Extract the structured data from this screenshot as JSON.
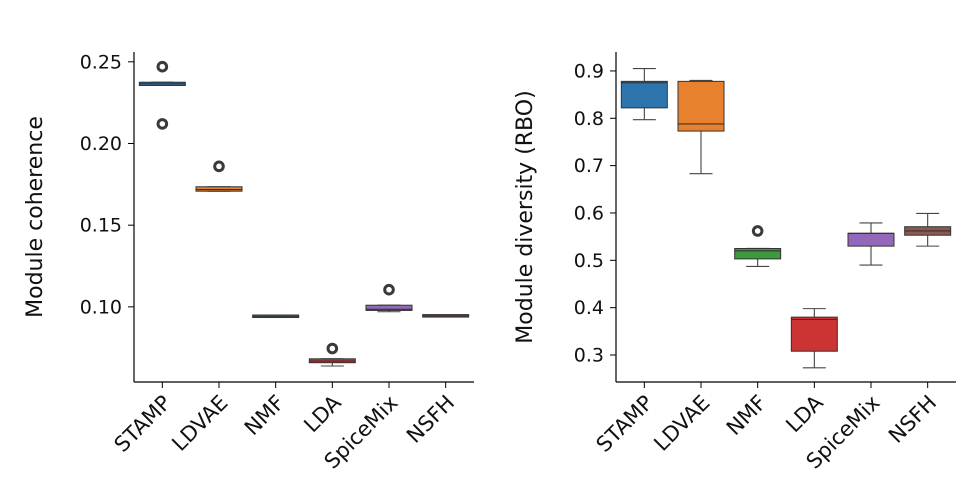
{
  "chart_data": [
    {
      "type": "box",
      "title": "",
      "xlabel": "",
      "ylabel": "Module coherence",
      "ylim": [
        0.054,
        0.256
      ],
      "yticks": [
        0.1,
        0.15,
        0.2,
        0.25
      ],
      "ytick_labels": [
        "0.10",
        "0.15",
        "0.20",
        "0.25"
      ],
      "categories": [
        "STAMP",
        "LDVAE",
        "NMF",
        "LDA",
        "SpiceMix",
        "NSFH"
      ],
      "colors": [
        "#2e75ae",
        "#e8812d",
        "#3b9a3b",
        "#cc3333",
        "#9368bb",
        "#8a5a50"
      ],
      "boxes": [
        {
          "whislo": 0.2355,
          "q1": 0.2355,
          "med": 0.2365,
          "q3": 0.2375,
          "whishi": 0.2375,
          "fliers": [
            0.247,
            0.212
          ]
        },
        {
          "whislo": 0.1708,
          "q1": 0.1708,
          "med": 0.1718,
          "q3": 0.1735,
          "whishi": 0.1735,
          "fliers": [
            0.186
          ]
        },
        {
          "whislo": 0.0935,
          "q1": 0.0935,
          "med": 0.0942,
          "q3": 0.095,
          "whishi": 0.095,
          "fliers": []
        },
        {
          "whislo": 0.0638,
          "q1": 0.0658,
          "med": 0.0668,
          "q3": 0.0682,
          "whishi": 0.0682,
          "fliers": [
            0.0745
          ]
        },
        {
          "whislo": 0.097,
          "q1": 0.0978,
          "med": 0.0985,
          "q3": 0.101,
          "whishi": 0.101,
          "fliers": [
            0.1105
          ]
        },
        {
          "whislo": 0.094,
          "q1": 0.094,
          "med": 0.0945,
          "q3": 0.095,
          "whishi": 0.095,
          "fliers": []
        }
      ]
    },
    {
      "type": "box",
      "title": "",
      "xlabel": "",
      "ylabel": "Module diversity (RBO)",
      "ylim": [
        0.243,
        0.94
      ],
      "yticks": [
        0.3,
        0.4,
        0.5,
        0.6,
        0.7,
        0.8,
        0.9
      ],
      "ytick_labels": [
        "0.3",
        "0.4",
        "0.5",
        "0.6",
        "0.7",
        "0.8",
        "0.9"
      ],
      "categories": [
        "STAMP",
        "LDVAE",
        "NMF",
        "LDA",
        "SpiceMix",
        "NSFH"
      ],
      "colors": [
        "#2e75ae",
        "#e8812d",
        "#3b9a3b",
        "#cc3333",
        "#9368bb",
        "#8a5a50"
      ],
      "boxes": [
        {
          "whislo": 0.797,
          "q1": 0.822,
          "med": 0.875,
          "q3": 0.878,
          "whishi": 0.905,
          "fliers": []
        },
        {
          "whislo": 0.683,
          "q1": 0.773,
          "med": 0.788,
          "q3": 0.878,
          "whishi": 0.88,
          "fliers": []
        },
        {
          "whislo": 0.487,
          "q1": 0.503,
          "med": 0.52,
          "q3": 0.525,
          "whishi": 0.525,
          "fliers": [
            0.562
          ]
        },
        {
          "whislo": 0.273,
          "q1": 0.308,
          "med": 0.375,
          "q3": 0.38,
          "whishi": 0.398,
          "fliers": []
        },
        {
          "whislo": 0.49,
          "q1": 0.53,
          "med": 0.557,
          "q3": 0.557,
          "whishi": 0.579,
          "fliers": []
        },
        {
          "whislo": 0.53,
          "q1": 0.553,
          "med": 0.562,
          "q3": 0.571,
          "whishi": 0.599,
          "fliers": []
        }
      ]
    }
  ]
}
